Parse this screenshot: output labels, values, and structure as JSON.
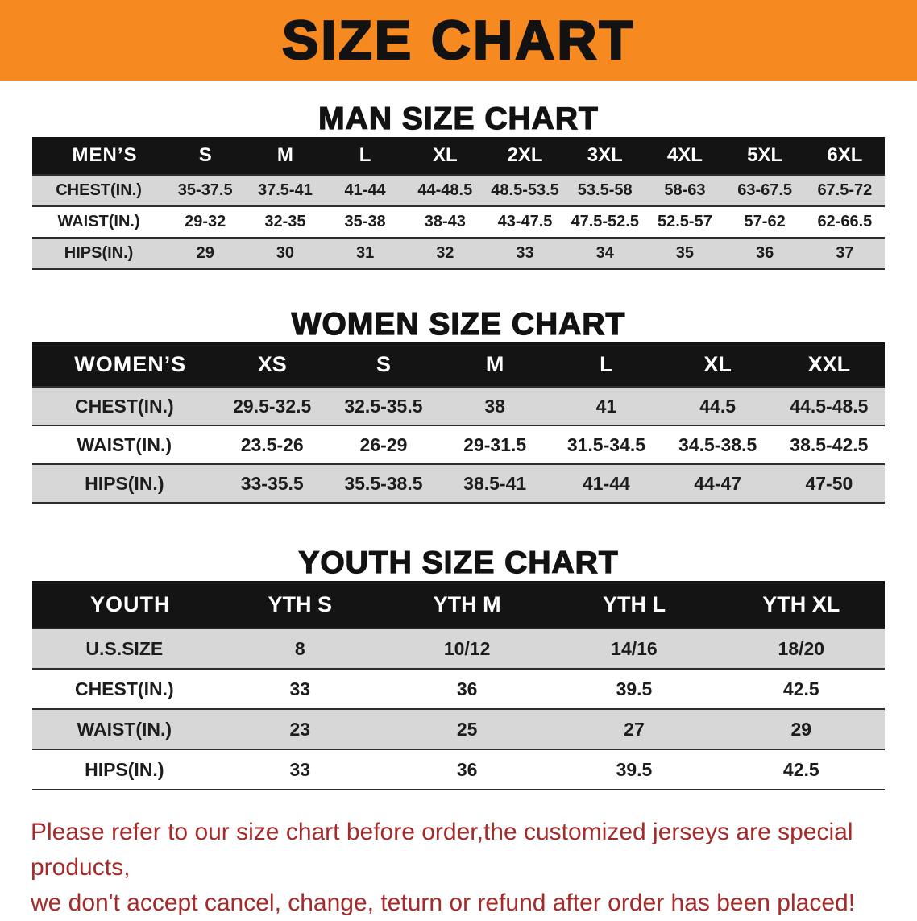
{
  "banner": {
    "title": "SIZE CHART"
  },
  "men": {
    "heading": "MAN SIZE CHART",
    "table_title": "MEN’S",
    "sizes": [
      "S",
      "M",
      "L",
      "XL",
      "2XL",
      "3XL",
      "4XL",
      "5XL",
      "6XL"
    ],
    "rows": [
      {
        "label": "CHEST(IN.)",
        "values": [
          "35-37.5",
          "37.5-41",
          "41-44",
          "44-48.5",
          "48.5-53.5",
          "53.5-58",
          "58-63",
          "63-67.5",
          "67.5-72"
        ]
      },
      {
        "label": "WAIST(IN.)",
        "values": [
          "29-32",
          "32-35",
          "35-38",
          "38-43",
          "43-47.5",
          "47.5-52.5",
          "52.5-57",
          "57-62",
          "62-66.5"
        ]
      },
      {
        "label": "HIPS(IN.)",
        "values": [
          "29",
          "30",
          "31",
          "32",
          "33",
          "34",
          "35",
          "36",
          "37"
        ]
      }
    ]
  },
  "women": {
    "heading": "WOMEN SIZE CHART",
    "table_title": "WOMEN’S",
    "sizes": [
      "XS",
      "S",
      "M",
      "L",
      "XL",
      "XXL"
    ],
    "rows": [
      {
        "label": "CHEST(IN.)",
        "values": [
          "29.5-32.5",
          "32.5-35.5",
          "38",
          "41",
          "44.5",
          "44.5-48.5"
        ]
      },
      {
        "label": "WAIST(IN.)",
        "values": [
          "23.5-26",
          "26-29",
          "29-31.5",
          "31.5-34.5",
          "34.5-38.5",
          "38.5-42.5"
        ]
      },
      {
        "label": "HIPS(IN.)",
        "values": [
          "33-35.5",
          "35.5-38.5",
          "38.5-41",
          "41-44",
          "44-47",
          "47-50"
        ]
      }
    ]
  },
  "youth": {
    "heading": "YOUTH SIZE CHART",
    "table_title": "YOUTH",
    "sizes": [
      "YTH S",
      "YTH M",
      "YTH L",
      "YTH XL"
    ],
    "rows": [
      {
        "label": "U.S.SIZE",
        "values": [
          "8",
          "10/12",
          "14/16",
          "18/20"
        ]
      },
      {
        "label": "CHEST(IN.)",
        "values": [
          "33",
          "36",
          "39.5",
          "42.5"
        ]
      },
      {
        "label": "WAIST(IN.)",
        "values": [
          "23",
          "25",
          "27",
          "29"
        ]
      },
      {
        "label": "HIPS(IN.)",
        "values": [
          "33",
          "36",
          "39.5",
          "42.5"
        ]
      }
    ]
  },
  "footer": {
    "line1": "Please refer to our size chart before order,the customized jerseys are special products,",
    "line2": "we don't accept cancel, change, teturn or refund after order has been placed!"
  },
  "colors": {
    "banner_bg": "#f6891f",
    "table_header_bg": "#141414",
    "row_alt_bg": "#d7d7d7",
    "footer_text": "#a52a2a"
  }
}
